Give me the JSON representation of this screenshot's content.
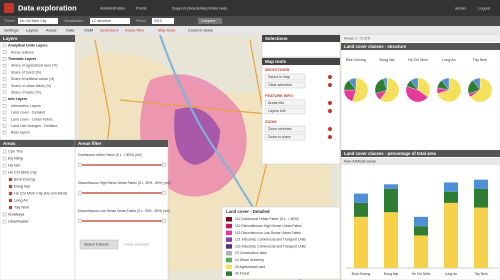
{
  "header": {
    "title": "Data exploration",
    "menu": [
      "Administration",
      "Portal",
      "Support (Academia)",
      "Video Help"
    ],
    "user": "admin",
    "logout": "Logout"
  },
  "selectors": {
    "theme_label": "Theme",
    "theme": "Ho Chi Minh City",
    "visualization_label": "Visualization",
    "visualization": "LC structure",
    "period_label": "Period",
    "period": "2010",
    "compare": "Compare"
  },
  "toolbar": [
    "Settings",
    "Layers",
    "Areas",
    "Date",
    "OSM",
    "Selections",
    "Areas filter",
    "Map tools",
    "Custom views"
  ],
  "layers": {
    "title": "Layers",
    "items": [
      "Analytical Units Layers",
      "Areas outlines",
      "Thematic Layers",
      "Share of agricultural land (%)",
      "Share of forest (%)",
      "Share of artificial areas (%)",
      "Share of urban fabric (%)",
      "Share of water (%)",
      "Info Layers",
      "Information Layers",
      "Land cover - Detailed",
      "Land cover - Urban Fabric",
      "Land Use changes - Detailed",
      "Base layers"
    ]
  },
  "areas": {
    "title": "Areas",
    "items": [
      "Cần Thơ",
      "Đà Nẵng",
      "Hà Nội",
      "Hồ Chí Minh City",
      "Bình Dương",
      "Đồng Nai",
      "Hồ Chí Minh City (Ho Chi Minh)",
      "Long An",
      "Tây Ninh",
      "Surabaya",
      "Ulaanbaatar"
    ]
  },
  "areas_filter": {
    "title": "Areas filter",
    "filters": [
      "Continuous Urban Fabric (S.L. > 80%) (m2)",
      "Discontinuous High Dense Urban Fabric (S.L. 50% - 80%) (m2)",
      "Discontinuous Low Dense Urban Fabric (S.L. 30% - 50%) (m2)"
    ],
    "select": "Select 5 Areas",
    "clear": "Clear selection"
  },
  "selections": {
    "title": "Selections"
  },
  "map_tools": {
    "title": "Map tools",
    "sections": [
      {
        "heading": "SELECTIONS",
        "items": [
          "Select in map",
          "Clear selection"
        ]
      },
      {
        "heading": "FEATURE INFO",
        "items": [
          "Areas info",
          "Layers info"
        ]
      },
      {
        "heading": "ZOOM",
        "items": [
          "Zoom selected",
          "Zoom to place"
        ]
      }
    ]
  },
  "legend": {
    "title": "Land cover - Detailed",
    "items": [
      {
        "label": "111 Continuous Urban Fabric (S.L. > 80%)",
        "color": "#7a0c19"
      },
      {
        "label": "112 Discontinuous High Dense Urban Fabric",
        "color": "#c21a58"
      },
      {
        "label": "113 Discontinuous Low Dense Urban Fabric",
        "color": "#e6399b"
      },
      {
        "label": "121 Industrial, Commercial and Transport Units",
        "color": "#8b3fa8"
      },
      {
        "label": "122 Industrial, Commercial and Transport Units",
        "color": "#5e2a84"
      },
      {
        "label": "13 Construction sites",
        "color": "#b0b0b0"
      },
      {
        "label": "14 Urban Greenery",
        "color": "#4caf50"
      },
      {
        "label": "20 Agricultural Land",
        "color": "#f5e05c"
      },
      {
        "label": "30 Forest",
        "color": "#2e7d32"
      }
    ]
  },
  "results": {
    "count": "Areas 1 - 5 of 5",
    "structure_title": "Land cover classes - structure",
    "percentage_title": "Land cover classes - percentage of total area",
    "subtitle": "Non-Artificial areas",
    "pies": {
      "type": "pie",
      "categories": [
        "Bình Dương",
        "Đồng Nai",
        "Hồ Chí Minh",
        "Long An",
        "Tây Ninh"
      ],
      "colors": [
        "#f5e05c",
        "#e6399b",
        "#2e7d32",
        "#4f8fd6"
      ],
      "values": [
        [
          55,
          20,
          15,
          10
        ],
        [
          60,
          10,
          25,
          5
        ],
        [
          35,
          45,
          10,
          10
        ],
        [
          70,
          8,
          12,
          10
        ],
        [
          65,
          5,
          20,
          10
        ]
      ]
    },
    "bar_chart": {
      "type": "bar",
      "categories": [
        "Bình Dương",
        "Đồng Nai",
        "Hồ Chí Minh",
        "Long An",
        "Tây Ninh"
      ],
      "ylim": [
        0,
        100
      ],
      "series": [
        {
          "color": "#f5d24a",
          "values": [
            55,
            60,
            35,
            70,
            65
          ]
        },
        {
          "color": "#2e7d32",
          "values": [
            15,
            25,
            10,
            12,
            20
          ]
        },
        {
          "color": "#4f8fd6",
          "values": [
            10,
            5,
            10,
            10,
            10
          ]
        }
      ]
    }
  }
}
